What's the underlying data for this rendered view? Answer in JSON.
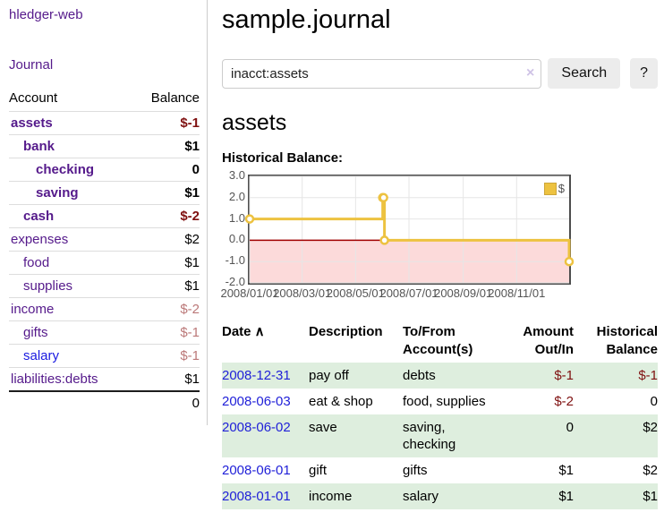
{
  "brand": "hledger-web",
  "nav": {
    "journal_label": "Journal"
  },
  "sidebar": {
    "headers": {
      "account": "Account",
      "balance": "Balance"
    },
    "rows": [
      {
        "name": "assets",
        "balance": "$-1",
        "depth": 1,
        "bold": true,
        "neg": "strong",
        "link": "purple"
      },
      {
        "name": "bank",
        "balance": "$1",
        "depth": 2,
        "bold": true,
        "neg": "none",
        "link": "purple"
      },
      {
        "name": "checking",
        "balance": "0",
        "depth": 3,
        "bold": true,
        "neg": "none",
        "link": "purple"
      },
      {
        "name": "saving",
        "balance": "$1",
        "depth": 3,
        "bold": true,
        "neg": "none",
        "link": "purple"
      },
      {
        "name": "cash",
        "balance": "$-2",
        "depth": 2,
        "bold": true,
        "neg": "strong",
        "link": "purple"
      },
      {
        "name": "expenses",
        "balance": "$2",
        "depth": 1,
        "bold": false,
        "neg": "none",
        "link": "purple"
      },
      {
        "name": "food",
        "balance": "$1",
        "depth": 2,
        "bold": false,
        "neg": "none",
        "link": "purple"
      },
      {
        "name": "supplies",
        "balance": "$1",
        "depth": 2,
        "bold": false,
        "neg": "none",
        "link": "purple"
      },
      {
        "name": "income",
        "balance": "$-2",
        "depth": 1,
        "bold": false,
        "neg": "weak",
        "link": "purple"
      },
      {
        "name": "gifts",
        "balance": "$-1",
        "depth": 2,
        "bold": false,
        "neg": "weak",
        "link": "purple"
      },
      {
        "name": "salary",
        "balance": "$-1",
        "depth": 2,
        "bold": false,
        "neg": "weak",
        "link": "blue"
      },
      {
        "name": "liabilities:debts",
        "balance": "$1",
        "depth": 1,
        "bold": false,
        "neg": "none",
        "link": "purple"
      }
    ],
    "total": "0"
  },
  "header": {
    "title": "sample.journal"
  },
  "search": {
    "value": "inacct:assets",
    "clear_icon": "×",
    "button_label": "Search",
    "help_label": "?"
  },
  "account_page": {
    "heading": "assets",
    "chart_label": "Historical Balance:"
  },
  "chart_data": {
    "type": "line",
    "step": true,
    "title": "Historical Balance",
    "series": [
      {
        "name": "$",
        "color": "#edc240",
        "points": [
          [
            "2008-01-01",
            1
          ],
          [
            "2008-06-01",
            2
          ],
          [
            "2008-06-02",
            2
          ],
          [
            "2008-06-03",
            0
          ],
          [
            "2008-12-31",
            -1
          ]
        ]
      }
    ],
    "x_tick_labels": [
      "2008/01/01",
      "2008/03/01",
      "2008/05/01",
      "2008/07/01",
      "2008/09/01",
      "2008/11/01"
    ],
    "y_ticks": [
      "3.0",
      "2.0",
      "1.0",
      "0.0",
      "-1.0",
      "-2.0"
    ],
    "ylim": [
      -2,
      3
    ],
    "xlim": [
      "2008-01-01",
      "2008-12-31"
    ],
    "grid": true,
    "legend_position": "top-right",
    "legend_label": "$",
    "colors": {
      "line": "#edc240",
      "marker_fill": "#ffffff",
      "negative_region": "#fcdada",
      "zero_line": "#a00000",
      "gridline": "#e6e6e6",
      "plot_border": "#4d4d4d",
      "tick_text": "#545454"
    }
  },
  "transactions": {
    "headers": [
      {
        "lines": [
          "Date"
        ],
        "align": "left",
        "sort": "∧"
      },
      {
        "lines": [
          "Description"
        ],
        "align": "left"
      },
      {
        "lines": [
          "To/From",
          "Account(s)"
        ],
        "align": "left"
      },
      {
        "lines": [
          "Amount",
          "Out/In"
        ],
        "align": "right"
      },
      {
        "lines": [
          "Historical",
          "Balance"
        ],
        "align": "right"
      }
    ],
    "rows": [
      {
        "date": "2008-12-31",
        "description": "pay off",
        "accounts": "debts",
        "amount": "$-1",
        "amount_neg": true,
        "balance": "$-1",
        "balance_neg": true
      },
      {
        "date": "2008-06-03",
        "description": "eat & shop",
        "accounts": "food, supplies",
        "amount": "$-2",
        "amount_neg": true,
        "balance": "0",
        "balance_neg": false
      },
      {
        "date": "2008-06-02",
        "description": "save",
        "accounts": "saving, checking",
        "amount": "0",
        "amount_neg": false,
        "balance": "$2",
        "balance_neg": false
      },
      {
        "date": "2008-06-01",
        "description": "gift",
        "accounts": "gifts",
        "amount": "$1",
        "amount_neg": false,
        "balance": "$2",
        "balance_neg": false
      },
      {
        "date": "2008-01-01",
        "description": "income",
        "accounts": "salary",
        "amount": "$1",
        "amount_neg": false,
        "balance": "$1",
        "balance_neg": false
      }
    ]
  }
}
